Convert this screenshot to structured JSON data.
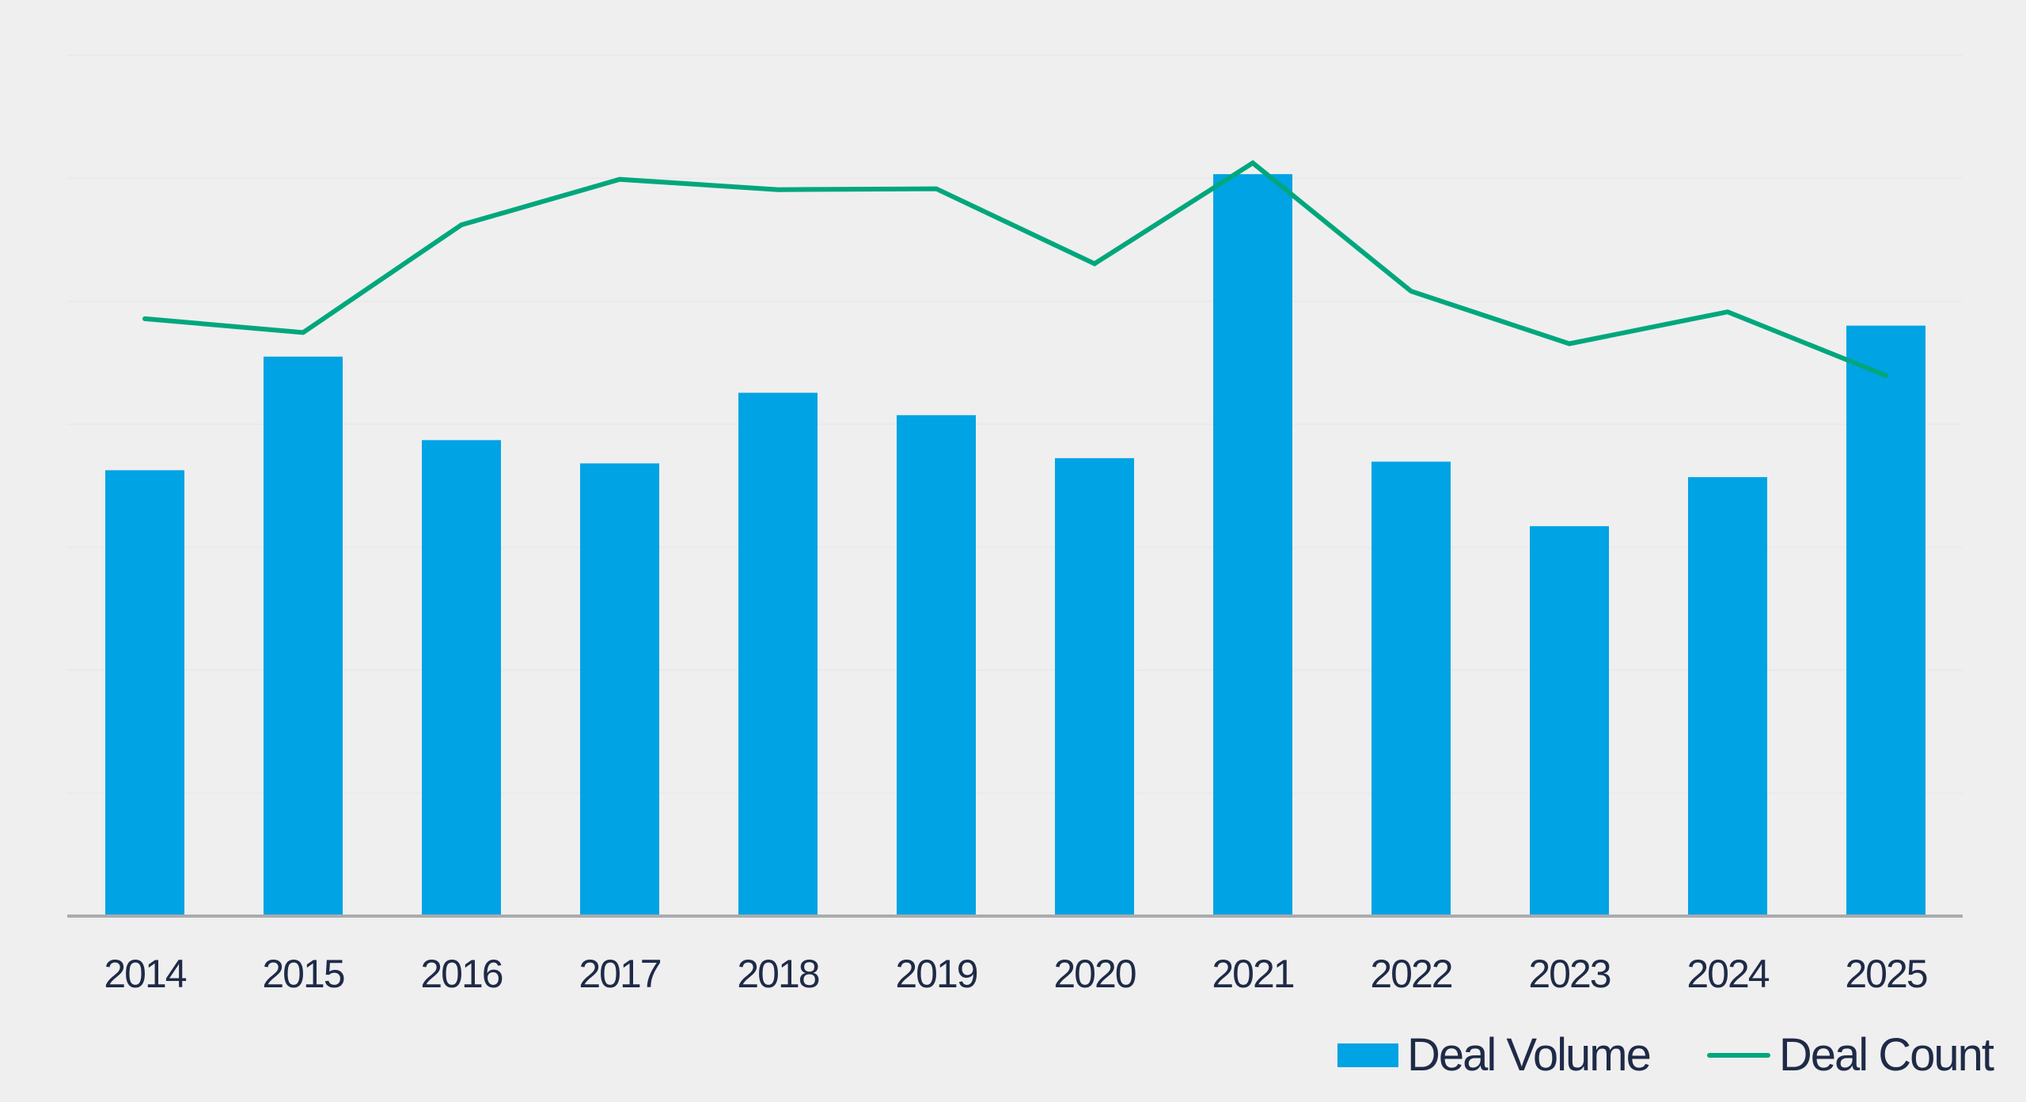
{
  "chart_data": {
    "type": "combo",
    "title": "",
    "xlabel": "",
    "ylabel": "",
    "categories": [
      "2014",
      "2015",
      "2016",
      "2017",
      "2018",
      "2019",
      "2020",
      "2021",
      "2022",
      "2023",
      "2024",
      "2025"
    ],
    "series": [
      {
        "name": "Deal Volume",
        "type": "bar",
        "color": "#00A3E4",
        "values_pct": [
          51.8,
          65.0,
          55.3,
          52.6,
          60.8,
          58.2,
          53.2,
          86.2,
          52.8,
          45.3,
          51.0,
          68.6
        ]
      },
      {
        "name": "Deal Count",
        "type": "line",
        "color": "#00A77C",
        "values_pct": [
          69.4,
          67.8,
          80.3,
          85.6,
          84.4,
          84.5,
          75.8,
          87.5,
          72.6,
          66.5,
          70.2,
          62.8
        ]
      }
    ],
    "value_units": "percent_of_plot_height (no y-axis tick labels visible in image)",
    "ylim": [
      0,
      100
    ],
    "y_axis_visible": false,
    "gridlines": {
      "visible": true,
      "count": 7,
      "color": "#E9EAEA"
    },
    "axis_line_color": "#A9ABAE",
    "background": "#EFEFEF",
    "text_color": "#1E2A47",
    "legend": {
      "position": "bottom-right",
      "items": [
        {
          "label": "Deal Volume",
          "swatch": "square",
          "color": "#00A3E4"
        },
        {
          "label": "Deal Count",
          "swatch": "line",
          "color": "#00A77C"
        }
      ]
    }
  }
}
